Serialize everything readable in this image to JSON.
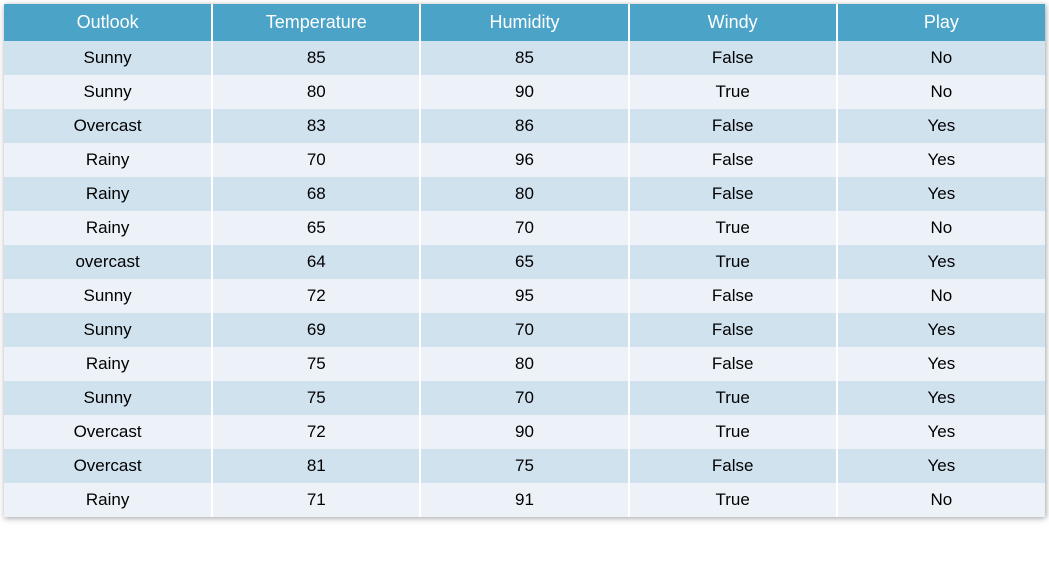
{
  "table": {
    "type": "table",
    "header_bg": "#4ba3c7",
    "header_text_color": "#ffffff",
    "row_odd_bg": "#d1e2ef",
    "row_even_bg": "#ecf2f8",
    "text_color": "#000000",
    "border_color": "#ffffff",
    "header_fontsize": 18,
    "cell_fontsize": 17,
    "column_widths_pct": [
      20,
      20,
      20,
      20,
      20
    ],
    "columns": [
      "Outlook",
      "Temperature",
      "Humidity",
      "Windy",
      "Play"
    ],
    "rows": [
      [
        "Sunny",
        "85",
        "85",
        "False",
        "No"
      ],
      [
        "Sunny",
        "80",
        "90",
        "True",
        "No"
      ],
      [
        "Overcast",
        "83",
        "86",
        "False",
        "Yes"
      ],
      [
        "Rainy",
        "70",
        "96",
        "False",
        "Yes"
      ],
      [
        "Rainy",
        "68",
        "80",
        "False",
        "Yes"
      ],
      [
        "Rainy",
        "65",
        "70",
        "True",
        "No"
      ],
      [
        "overcast",
        "64",
        "65",
        "True",
        "Yes"
      ],
      [
        "Sunny",
        "72",
        "95",
        "False",
        "No"
      ],
      [
        "Sunny",
        "69",
        "70",
        "False",
        "Yes"
      ],
      [
        "Rainy",
        "75",
        "80",
        "False",
        "Yes"
      ],
      [
        "Sunny",
        "75",
        "70",
        "True",
        "Yes"
      ],
      [
        "Overcast",
        "72",
        "90",
        "True",
        "Yes"
      ],
      [
        "Overcast",
        "81",
        "75",
        "False",
        "Yes"
      ],
      [
        "Rainy",
        "71",
        "91",
        "True",
        "No"
      ]
    ]
  }
}
